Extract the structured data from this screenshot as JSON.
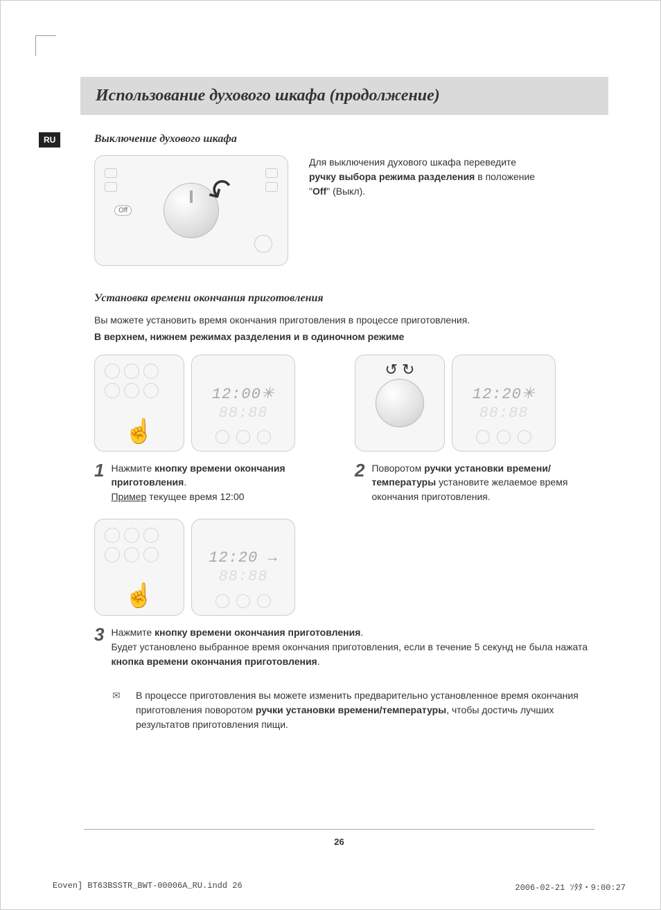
{
  "lang_badge": "RU",
  "title": "Использование духового шкафа (продолжение)",
  "section1": {
    "heading": "Выключение духового шкафа",
    "off_label": "Off",
    "text_pre": "Для выключения духового шкафа переведите ",
    "text_b1": "ручку выбора режима разделения",
    "text_mid": " в положение \"",
    "text_b2": "Off",
    "text_post": "\" (Выкл)."
  },
  "section2": {
    "heading": "Установка времени окончания приготовления",
    "intro": "Вы можете установить время окончания приготовления в процессе приготовления.",
    "intro_bold": "В верхнем, нижнем режимах разделения и в одиночном режиме",
    "step1": {
      "num": "1",
      "time": "12:00",
      "faded_time": "88:88",
      "line1_pre": "Нажмите ",
      "line1_b": "кнопку времени окончания приготовления",
      "line1_post": ".",
      "example_label": "Пример",
      "example_text": "  текущее время 12:00"
    },
    "step2": {
      "num": "2",
      "time": "12:20",
      "faded_time": "88:88",
      "line_pre": "Поворотом ",
      "line_b": "ручки установки времени/температуры",
      "line_post": " установите желаемое время окончания приготовления."
    },
    "step3": {
      "num": "3",
      "time": "12:20",
      "faded_time": "88:88",
      "line1_pre": "Нажмите ",
      "line1_b": "кнопку времени окончания приготовления",
      "line1_post": ".",
      "line2_pre": "Будет установлено выбранное время окончания приготовления, если в течение 5 секунд не была нажата ",
      "line2_b": "кнопка времени окончания приготовления",
      "line2_post": "."
    },
    "note": {
      "pre": "В процессе приготовления вы можете изменить предварительно установленное время окончания приготовления поворотом ",
      "b": "ручки установки времени/температуры",
      "post": ", чтобы достичь лучших результатов приготовления пищи."
    }
  },
  "page_number": "26",
  "meta_left": "Eoven] BT63BSSTR_BWT-00006A_RU.indd   26",
  "meta_right": "2006-02-21   ｿﾀﾀ・9:00:27"
}
